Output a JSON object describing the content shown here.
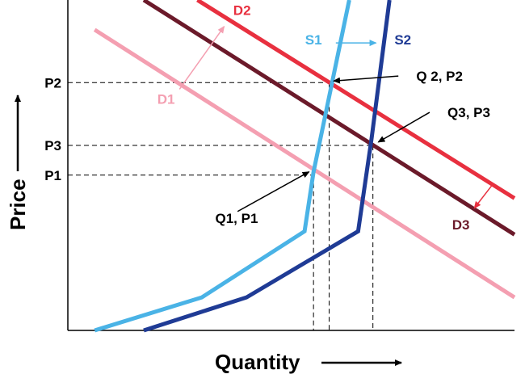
{
  "chart_data": {
    "type": "line",
    "title": "",
    "xlabel": "Quantity",
    "ylabel": "Price",
    "xlim": [
      0,
      100
    ],
    "ylim": [
      0,
      100
    ],
    "grid": false,
    "colors": {
      "D1": "#f49fb1",
      "D2": "#e8303f",
      "D3": "#6b1a2a",
      "S1": "#4ab3e6",
      "S2": "#1f3b95",
      "axis": "#000000",
      "text": "#000000"
    },
    "series": [
      {
        "name": "D1",
        "role": "demand",
        "points": [
          [
            6,
            91
          ],
          [
            100,
            10
          ]
        ]
      },
      {
        "name": "D2",
        "role": "demand",
        "points": [
          [
            29,
            100
          ],
          [
            100,
            40
          ]
        ]
      },
      {
        "name": "D3",
        "role": "demand",
        "points": [
          [
            17,
            100
          ],
          [
            100,
            29
          ]
        ]
      },
      {
        "name": "S1",
        "role": "supply",
        "points": [
          [
            6,
            0
          ],
          [
            30,
            10
          ],
          [
            53,
            30
          ],
          [
            55,
            48
          ],
          [
            63,
            100
          ]
        ]
      },
      {
        "name": "S2",
        "role": "supply",
        "points": [
          [
            17,
            0
          ],
          [
            40,
            10
          ],
          [
            65,
            30
          ],
          [
            68,
            58
          ],
          [
            72,
            100
          ]
        ]
      }
    ],
    "prices": [
      {
        "label": "P2",
        "y": 75
      },
      {
        "label": "P3",
        "y": 56
      },
      {
        "label": "P1",
        "y": 47
      }
    ],
    "equilibria": [
      {
        "label": "Q1, P1",
        "x": 55,
        "y": 47
      },
      {
        "label": "Q 2, P2",
        "x": 58.5,
        "y": 75
      },
      {
        "label": "Q3, P3",
        "x": 68.3,
        "y": 56
      }
    ],
    "shifts": [
      {
        "from": "D1",
        "to": "D2",
        "start": [
          25,
          73
        ],
        "end": [
          35,
          92
        ]
      },
      {
        "from": "S1",
        "to": "S2",
        "start": [
          60,
          87
        ],
        "end": [
          69,
          87
        ]
      },
      {
        "from": "D2",
        "to": "D3",
        "start": [
          95,
          44
        ],
        "end": [
          91,
          37
        ]
      }
    ],
    "label_positions": {
      "D1": [
        22,
        70
      ],
      "D2": [
        39,
        97
      ],
      "D3": [
        88,
        32
      ],
      "S1": [
        55,
        88
      ],
      "S2": [
        75,
        88
      ]
    },
    "callouts": [
      {
        "label": "Q1, P1",
        "text_at": [
          33,
          34
        ],
        "arrow_from": [
          38,
          36
        ],
        "arrow_to": [
          54,
          48
        ]
      },
      {
        "label": "Q 2, P2",
        "text_at": [
          78,
          77
        ],
        "arrow_from": [
          74,
          77
        ],
        "arrow_to": [
          59.5,
          75.5
        ]
      },
      {
        "label": "Q3, P3",
        "text_at": [
          85,
          66
        ],
        "arrow_from": [
          81,
          66
        ],
        "arrow_to": [
          69.5,
          57
        ]
      }
    ]
  }
}
